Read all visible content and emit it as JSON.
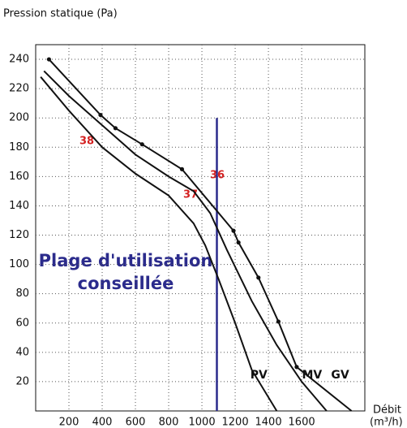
{
  "chart_data": {
    "type": "line",
    "y_label": "Pression statique (Pa)",
    "x_label": "Débit",
    "x_unit": "(m³/h)",
    "xlim": [
      0,
      1980
    ],
    "ylim": [
      0,
      250
    ],
    "xticks": [
      200,
      400,
      600,
      800,
      1000,
      1200,
      1400,
      1600
    ],
    "yticks": [
      20,
      40,
      60,
      80,
      100,
      120,
      140,
      160,
      180,
      200,
      220,
      240
    ],
    "grid": true,
    "series": [
      {
        "name": "PV",
        "color": "#111111",
        "markers": false,
        "x": [
          30,
          200,
          400,
          600,
          800,
          950,
          1020,
          1100,
          1200,
          1300,
          1450
        ],
        "values": [
          228,
          205,
          180,
          162,
          147,
          128,
          113,
          90,
          60,
          28,
          0
        ]
      },
      {
        "name": "MV",
        "color": "#111111",
        "markers": false,
        "x": [
          50,
          200,
          400,
          600,
          800,
          950,
          1050,
          1150,
          1300,
          1450,
          1600,
          1750
        ],
        "values": [
          232,
          215,
          195,
          175,
          160,
          150,
          135,
          110,
          75,
          45,
          20,
          0
        ]
      },
      {
        "name": "GV",
        "color": "#111111",
        "markers": true,
        "x": [
          80,
          390,
          480,
          640,
          880,
          1190,
          1220,
          1340,
          1460,
          1570,
          1900
        ],
        "values": [
          240,
          202,
          193,
          182,
          165,
          123,
          115,
          91,
          61,
          30,
          0
        ]
      }
    ],
    "recommended_line": {
      "x": 1090,
      "ymax": 200,
      "color": "#2b2b8c"
    },
    "recommended_text": [
      "Plage d'utilisation",
      "conseillée"
    ],
    "curve_labels": [
      "38",
      "37",
      "36"
    ]
  }
}
